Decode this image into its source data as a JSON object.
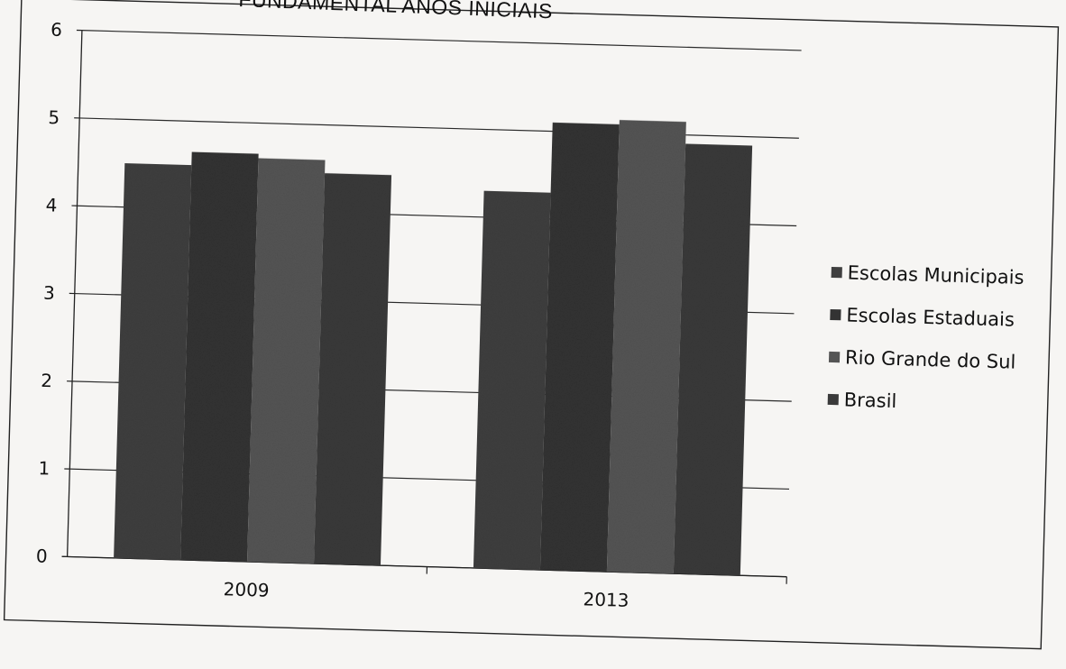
{
  "chart_data": {
    "type": "bar",
    "title": "FUNDAMENTAL ANOS INICIAIS",
    "categories": [
      "2009",
      "2013"
    ],
    "series": [
      {
        "name": "Escolas Municipais",
        "values": [
          4.5,
          4.3
        ]
      },
      {
        "name": "Escolas Estaduais",
        "values": [
          4.65,
          5.1
        ]
      },
      {
        "name": "Rio Grande do Sul",
        "values": [
          4.6,
          5.15
        ]
      },
      {
        "name": "Brasil",
        "values": [
          4.45,
          4.9
        ]
      }
    ],
    "ylim": [
      0,
      6
    ],
    "yticks": [
      "0",
      "1",
      "2",
      "3",
      "4",
      "5",
      "6"
    ],
    "grid": true,
    "legend_position": "right",
    "colors": {
      "Escolas Municipais": "#3f3f3f",
      "Escolas Estaduais": "#333333",
      "Rio Grande do Sul": "#555555",
      "Brasil": "#3a3a3a"
    }
  }
}
